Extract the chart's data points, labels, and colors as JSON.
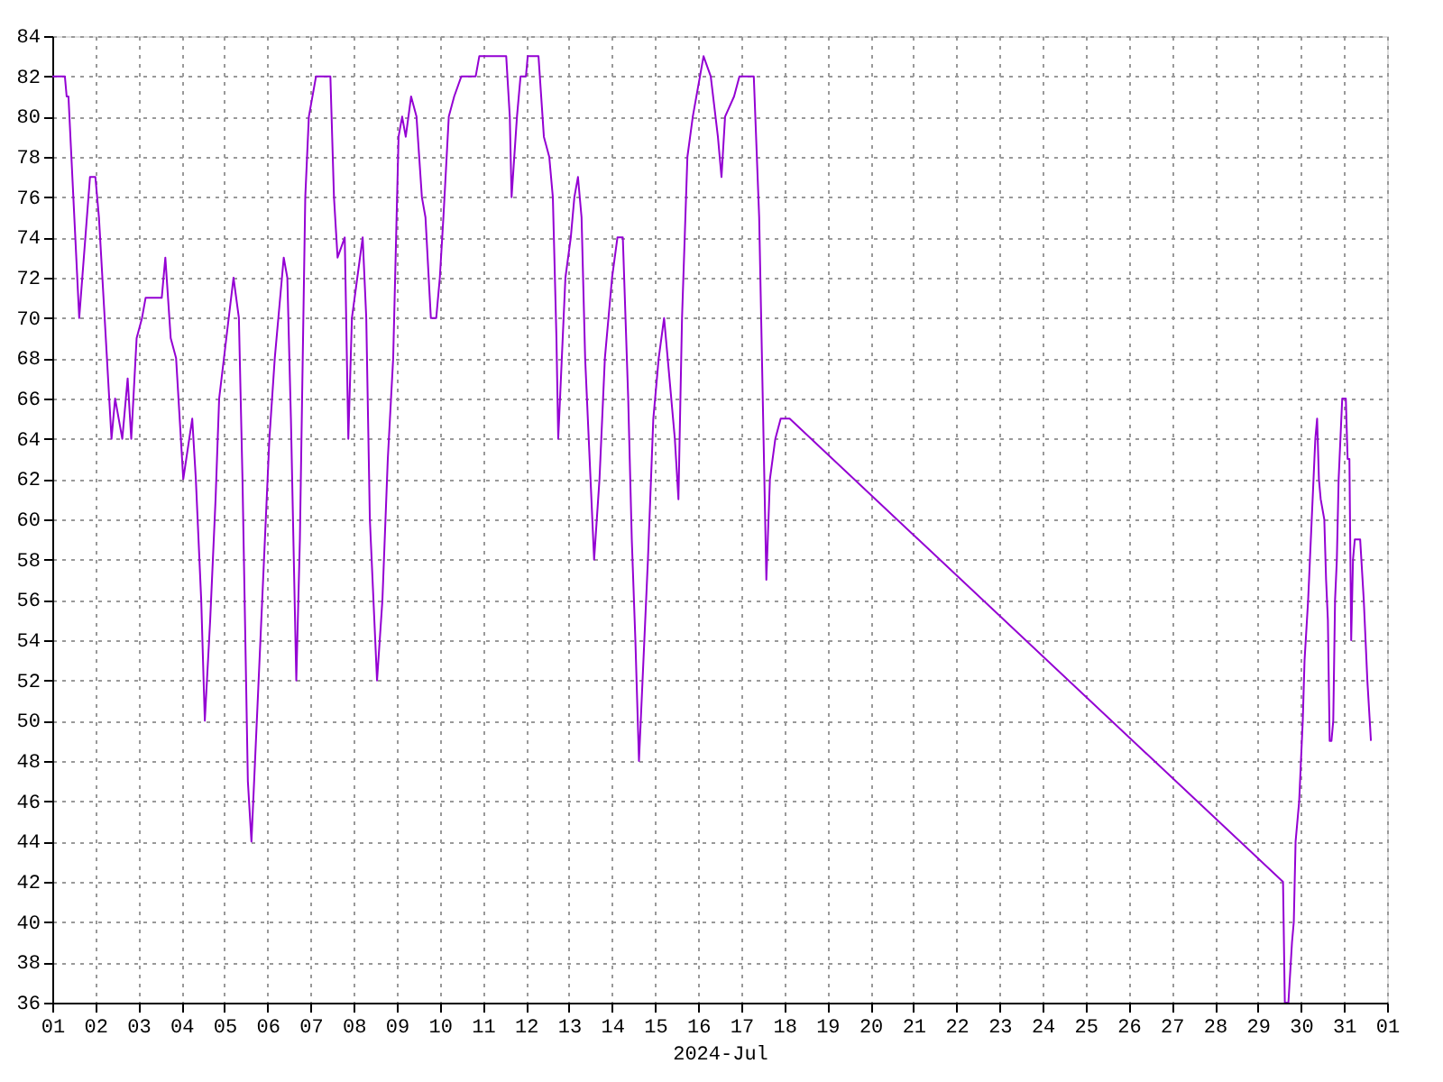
{
  "chart_data": {
    "type": "line",
    "xlabel": "2024-Jul",
    "x": [
      "2024-07-01T00:00",
      "2024-07-01T07:00",
      "2024-07-01T08:00",
      "2024-07-01T09:00",
      "2024-07-01T15:00",
      "2024-07-01T21:00",
      "2024-07-02T00:00",
      "2024-07-02T02:00",
      "2024-07-02T09:00",
      "2024-07-02T11:00",
      "2024-07-02T15:00",
      "2024-07-02T18:00",
      "2024-07-02T20:00",
      "2024-07-02T23:00",
      "2024-07-03T02:00",
      "2024-07-03T04:00",
      "2024-07-03T13:00",
      "2024-07-03T15:00",
      "2024-07-03T18:00",
      "2024-07-03T21:00",
      "2024-07-03T23:00",
      "2024-07-04T01:00",
      "2024-07-04T06:00",
      "2024-07-04T08:00",
      "2024-07-04T11:00",
      "2024-07-04T13:00",
      "2024-07-04T16:00",
      "2024-07-04T19:00",
      "2024-07-04T21:00",
      "2024-07-05T01:00",
      "2024-07-05T05:00",
      "2024-07-05T08:00",
      "2024-07-05T10:00",
      "2024-07-05T13:00",
      "2024-07-05T15:00",
      "2024-07-05T19:00",
      "2024-07-05T22:00",
      "2024-07-06T01:00",
      "2024-07-06T04:00",
      "2024-07-06T08:00",
      "2024-07-06T09:00",
      "2024-07-06T11:00",
      "2024-07-06T13:00",
      "2024-07-06T16:00",
      "2024-07-06T18:00",
      "2024-07-06T21:00",
      "2024-07-06T23:00",
      "2024-07-07T03:00",
      "2024-07-07T11:00",
      "2024-07-07T13:00",
      "2024-07-07T15:00",
      "2024-07-07T19:00",
      "2024-07-07T21:00",
      "2024-07-07T23:00",
      "2024-07-08T02:00",
      "2024-07-08T05:00",
      "2024-07-08T07:00",
      "2024-07-08T09:00",
      "2024-07-08T13:00",
      "2024-07-08T16:00",
      "2024-07-08T19:00",
      "2024-07-08T22:00",
      "2024-07-09T01:00",
      "2024-07-09T03:00",
      "2024-07-09T05:00",
      "2024-07-09T08:00",
      "2024-07-09T11:00",
      "2024-07-09T14:00",
      "2024-07-09T16:00",
      "2024-07-09T19:00",
      "2024-07-09T22:00",
      "2024-07-10T00:00",
      "2024-07-10T02:00",
      "2024-07-10T05:00",
      "2024-07-10T08:00",
      "2024-07-10T12:00",
      "2024-07-10T20:00",
      "2024-07-10T22:00",
      "2024-07-11T13:00",
      "2024-07-11T15:00",
      "2024-07-11T16:00",
      "2024-07-11T19:00",
      "2024-07-11T21:00",
      "2024-07-12T00:00",
      "2024-07-12T01:00",
      "2024-07-12T07:00",
      "2024-07-12T10:00",
      "2024-07-12T13:00",
      "2024-07-12T15:00",
      "2024-07-12T17:00",
      "2024-07-12T18:00",
      "2024-07-12T20:00",
      "2024-07-12T22:00",
      "2024-07-13T01:00",
      "2024-07-13T03:00",
      "2024-07-13T05:00",
      "2024-07-13T07:00",
      "2024-07-13T09:00",
      "2024-07-13T12:00",
      "2024-07-13T14:00",
      "2024-07-13T17:00",
      "2024-07-13T20:00",
      "2024-07-14T00:00",
      "2024-07-14T03:00",
      "2024-07-14T06:00",
      "2024-07-14T09:00",
      "2024-07-14T11:00",
      "2024-07-14T13:00",
      "2024-07-14T15:00",
      "2024-07-14T17:00",
      "2024-07-14T20:00",
      "2024-07-14T23:00",
      "2024-07-15T02:00",
      "2024-07-15T05:00",
      "2024-07-15T08:00",
      "2024-07-15T11:00",
      "2024-07-15T13:00",
      "2024-07-15T15:00",
      "2024-07-15T18:00",
      "2024-07-15T21:00",
      "2024-07-16T01:00",
      "2024-07-16T03:00",
      "2024-07-16T07:00",
      "2024-07-16T11:00",
      "2024-07-16T13:00",
      "2024-07-16T15:00",
      "2024-07-16T20:00",
      "2024-07-16T23:00",
      "2024-07-17T07:00",
      "2024-07-17T10:00",
      "2024-07-17T12:00",
      "2024-07-17T14:00",
      "2024-07-17T16:00",
      "2024-07-17T19:00",
      "2024-07-17T22:00",
      "2024-07-18T03:00",
      "2024-07-29T14:00",
      "2024-07-29T15:00",
      "2024-07-29T17:00",
      "2024-07-29T19:00",
      "2024-07-29T20:00",
      "2024-07-29T21:00",
      "2024-07-29T23:00",
      "2024-07-30T00:00",
      "2024-07-30T01:00",
      "2024-07-30T02:00",
      "2024-07-30T04:00",
      "2024-07-30T05:00",
      "2024-07-30T06:00",
      "2024-07-30T07:00",
      "2024-07-30T08:00",
      "2024-07-30T09:00",
      "2024-07-30T10:00",
      "2024-07-30T11:00",
      "2024-07-30T13:00",
      "2024-07-30T14:00",
      "2024-07-30T15:00",
      "2024-07-30T16:00",
      "2024-07-30T17:00",
      "2024-07-30T18:00",
      "2024-07-30T19:00",
      "2024-07-30T20:00",
      "2024-07-30T21:00",
      "2024-07-30T22:00",
      "2024-07-30T23:00",
      "2024-07-31T01:00",
      "2024-07-31T02:00",
      "2024-07-31T03:00",
      "2024-07-31T04:00",
      "2024-07-31T05:00",
      "2024-07-31T06:00",
      "2024-07-31T09:00",
      "2024-07-31T11:00",
      "2024-07-31T12:00",
      "2024-07-31T13:00",
      "2024-07-31T15:00"
    ],
    "series": [
      {
        "color": "#9400d3",
        "values": [
          82,
          82,
          81,
          81,
          70,
          77,
          77,
          75,
          64,
          66,
          64,
          67,
          64,
          69,
          70,
          71,
          71,
          73,
          69,
          68,
          65,
          62,
          65,
          62,
          56,
          50,
          55,
          61,
          66,
          69,
          72,
          70,
          62,
          47,
          44,
          52,
          58,
          64,
          68,
          72,
          73,
          72,
          65,
          52,
          59,
          76,
          80,
          82,
          82,
          76,
          73,
          74,
          64,
          70,
          72,
          74,
          70,
          60,
          52,
          56,
          63,
          68,
          79,
          80,
          79,
          81,
          80,
          76,
          75,
          70,
          70,
          72,
          75,
          80,
          81,
          82,
          82,
          83,
          83,
          80,
          76,
          80,
          82,
          82,
          83,
          83,
          79,
          78,
          76,
          69,
          64,
          68,
          72,
          74,
          76,
          77,
          75,
          68,
          62,
          58,
          62,
          68,
          72,
          74,
          74,
          66,
          59,
          54,
          48,
          52,
          58,
          65,
          68,
          70,
          67,
          64,
          61,
          70,
          78,
          80,
          82,
          83,
          82,
          79,
          77,
          80,
          81,
          82,
          82,
          75,
          66,
          57,
          62,
          64,
          65,
          65,
          42,
          36,
          36,
          39,
          40,
          44,
          46,
          48,
          50,
          53,
          56,
          58,
          60,
          62,
          64,
          65,
          62,
          61,
          60,
          57,
          55,
          49,
          49,
          50,
          56,
          58,
          62,
          64,
          66,
          66,
          63,
          63,
          54,
          58,
          59,
          59,
          56,
          54,
          52,
          49
        ]
      }
    ],
    "xlim": [
      "2024-07-01T00:00",
      "2024-08-01T00:00"
    ],
    "xticks": [
      {
        "value": "2024-07-01T00:00",
        "label": "01"
      },
      {
        "value": "2024-07-02T00:00",
        "label": "02"
      },
      {
        "value": "2024-07-03T00:00",
        "label": "03"
      },
      {
        "value": "2024-07-04T00:00",
        "label": "04"
      },
      {
        "value": "2024-07-05T00:00",
        "label": "05"
      },
      {
        "value": "2024-07-06T00:00",
        "label": "06"
      },
      {
        "value": "2024-07-07T00:00",
        "label": "07"
      },
      {
        "value": "2024-07-08T00:00",
        "label": "08"
      },
      {
        "value": "2024-07-09T00:00",
        "label": "09"
      },
      {
        "value": "2024-07-10T00:00",
        "label": "10"
      },
      {
        "value": "2024-07-11T00:00",
        "label": "11"
      },
      {
        "value": "2024-07-12T00:00",
        "label": "12"
      },
      {
        "value": "2024-07-13T00:00",
        "label": "13"
      },
      {
        "value": "2024-07-14T00:00",
        "label": "14"
      },
      {
        "value": "2024-07-15T00:00",
        "label": "15"
      },
      {
        "value": "2024-07-16T00:00",
        "label": "16"
      },
      {
        "value": "2024-07-17T00:00",
        "label": "17"
      },
      {
        "value": "2024-07-18T00:00",
        "label": "18"
      },
      {
        "value": "2024-07-19T00:00",
        "label": "19"
      },
      {
        "value": "2024-07-20T00:00",
        "label": "20"
      },
      {
        "value": "2024-07-21T00:00",
        "label": "21"
      },
      {
        "value": "2024-07-22T00:00",
        "label": "22"
      },
      {
        "value": "2024-07-23T00:00",
        "label": "23"
      },
      {
        "value": "2024-07-24T00:00",
        "label": "24"
      },
      {
        "value": "2024-07-25T00:00",
        "label": "25"
      },
      {
        "value": "2024-07-26T00:00",
        "label": "26"
      },
      {
        "value": "2024-07-27T00:00",
        "label": "27"
      },
      {
        "value": "2024-07-28T00:00",
        "label": "28"
      },
      {
        "value": "2024-07-29T00:00",
        "label": "29"
      },
      {
        "value": "2024-07-30T00:00",
        "label": "30"
      },
      {
        "value": "2024-07-31T00:00",
        "label": "31"
      },
      {
        "value": "2024-08-01T00:00",
        "label": "01"
      }
    ],
    "ylim": [
      36,
      84
    ],
    "yticks": [
      36,
      38,
      40,
      42,
      44,
      46,
      48,
      50,
      52,
      54,
      56,
      58,
      60,
      62,
      64,
      66,
      68,
      70,
      72,
      74,
      76,
      78,
      80,
      82,
      84
    ],
    "grid": true,
    "marker": "none",
    "line_style": "solid"
  }
}
